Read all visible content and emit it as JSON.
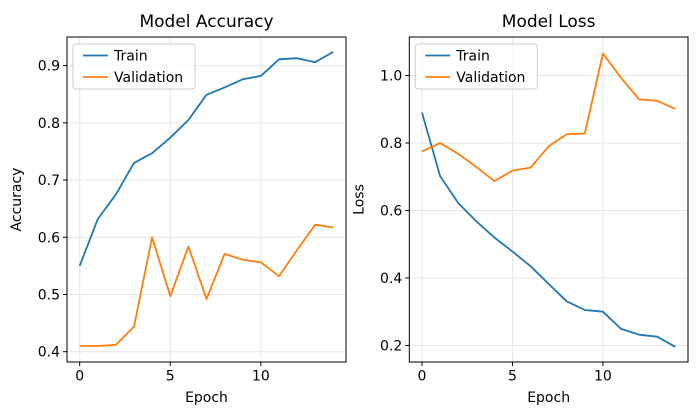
{
  "figure": {
    "background": "#ffffff",
    "grid_color": "#e6e6e6",
    "spine_color": "#000000"
  },
  "chart_data": [
    {
      "type": "line",
      "title": "Model Accuracy",
      "xlabel": "Epoch",
      "ylabel": "Accuracy",
      "x": [
        0,
        1,
        2,
        3,
        4,
        5,
        6,
        7,
        8,
        9,
        10,
        11,
        12,
        13,
        14
      ],
      "series": [
        {
          "name": "Train",
          "color": "#1f77b4",
          "values": [
            0.55,
            0.632,
            0.675,
            0.73,
            0.747,
            0.774,
            0.805,
            0.849,
            0.862,
            0.876,
            0.882,
            0.911,
            0.913,
            0.906,
            0.924
          ]
        },
        {
          "name": "Validation",
          "color": "#ff7f0e",
          "values": [
            0.41,
            0.41,
            0.412,
            0.444,
            0.6,
            0.497,
            0.584,
            0.492,
            0.571,
            0.561,
            0.556,
            0.532,
            0.578,
            0.622,
            0.617
          ]
        }
      ],
      "xticks": [
        0,
        5,
        10
      ],
      "xtick_labels": [
        "0",
        "5",
        "10"
      ],
      "yticks": [
        0.4,
        0.5,
        0.6,
        0.7,
        0.8,
        0.9
      ],
      "ytick_labels": [
        "0.4",
        "0.5",
        "0.6",
        "0.7",
        "0.8",
        "0.9"
      ],
      "xlim": [
        -0.7,
        14.7
      ],
      "ylim": [
        0.382,
        0.95
      ],
      "grid": true,
      "legend": {
        "position": "upper-left",
        "entries": [
          "Train",
          "Validation"
        ]
      }
    },
    {
      "type": "line",
      "title": "Model Loss",
      "xlabel": "Epoch",
      "ylabel": "Loss",
      "x": [
        0,
        1,
        2,
        3,
        4,
        5,
        6,
        7,
        8,
        9,
        10,
        11,
        12,
        13,
        14
      ],
      "series": [
        {
          "name": "Train",
          "color": "#1f77b4",
          "values": [
            0.89,
            0.702,
            0.622,
            0.568,
            0.52,
            0.478,
            0.435,
            0.382,
            0.331,
            0.305,
            0.3,
            0.249,
            0.232,
            0.226,
            0.196
          ]
        },
        {
          "name": "Validation",
          "color": "#ff7f0e",
          "values": [
            0.775,
            0.8,
            0.768,
            0.729,
            0.687,
            0.718,
            0.727,
            0.79,
            0.826,
            0.828,
            1.065,
            0.993,
            0.929,
            0.925,
            0.901
          ]
        }
      ],
      "xticks": [
        0,
        5,
        10
      ],
      "xtick_labels": [
        "0",
        "5",
        "10"
      ],
      "yticks": [
        0.2,
        0.4,
        0.6,
        0.8,
        1.0
      ],
      "ytick_labels": [
        "0.2",
        "0.4",
        "0.6",
        "0.8",
        "1.0"
      ],
      "xlim": [
        -0.7,
        14.7
      ],
      "ylim": [
        0.151,
        1.114
      ],
      "grid": true,
      "legend": {
        "position": "upper-left",
        "entries": [
          "Train",
          "Validation"
        ]
      }
    }
  ]
}
